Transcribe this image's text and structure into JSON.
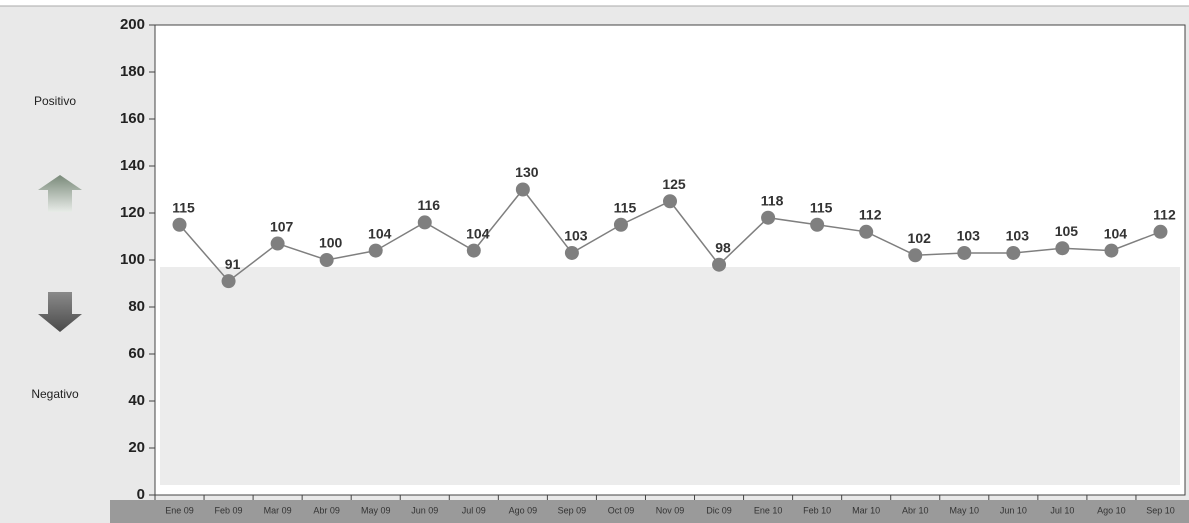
{
  "chart_data": {
    "type": "line",
    "categories": [
      "Ene 09",
      "Feb 09",
      "Mar 09",
      "Abr 09",
      "May 09",
      "Jun 09",
      "Jul 09",
      "Ago 09",
      "Sep 09",
      "Oct 09",
      "Nov 09",
      "Dic 09",
      "Ene 10",
      "Feb 10",
      "Mar 10",
      "Abr 10",
      "May 10",
      "Jun 10",
      "Jul 10",
      "Ago 10",
      "Sep 10"
    ],
    "series": [
      {
        "color": "#7f7f7f",
        "values": [
          115,
          91,
          107,
          100,
          104,
          116,
          104,
          130,
          103,
          115,
          125,
          98,
          118,
          115,
          112,
          102,
          103,
          103,
          105,
          104,
          112
        ]
      }
    ],
    "ylim": [
      0,
      200
    ],
    "yticks": [
      0,
      20,
      40,
      60,
      80,
      100,
      120,
      140,
      160,
      180,
      200
    ],
    "annotations": [
      "Positivo",
      "Negativo"
    ],
    "grid": false
  }
}
